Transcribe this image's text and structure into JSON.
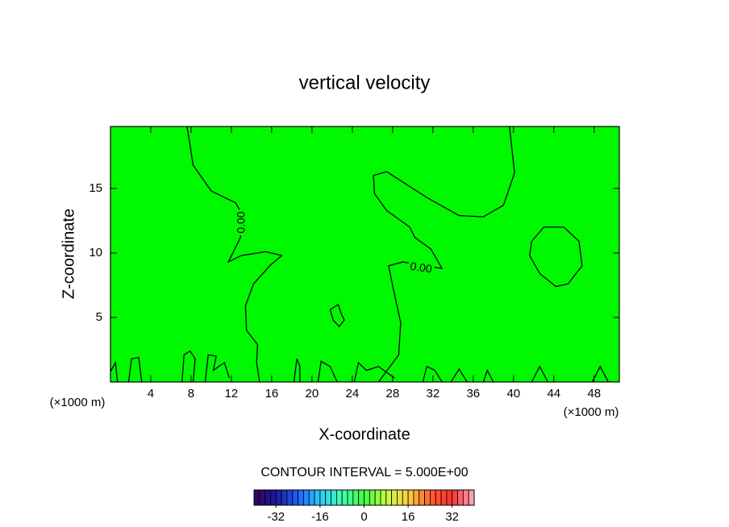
{
  "chart_data": {
    "type": "contour",
    "title": "vertical velocity",
    "xlabel": "X-coordinate",
    "ylabel": "Z-coordinate",
    "x_unit_left": "(×1000 m)",
    "x_unit_right": "(×1000 m)",
    "xlim": [
      0,
      50.5
    ],
    "ylim": [
      0,
      19.8
    ],
    "xticks": [
      4,
      8,
      12,
      16,
      20,
      24,
      28,
      32,
      36,
      40,
      44,
      48
    ],
    "yticks": [
      5,
      10,
      15
    ],
    "fill_color": "#00f800",
    "line_color": "#000000",
    "contours": [
      {
        "label": "0.00",
        "x": [
          7.6,
          8.2,
          10.0,
          12.4,
          13.0,
          12.9,
          11.7,
          13.0,
          15.4,
          17.0,
          15.8,
          14.2,
          13.4,
          13.5,
          14.6,
          14.5,
          14.8
        ],
        "y": [
          19.8,
          16.8,
          14.8,
          13.9,
          13.1,
          11.2,
          9.3,
          9.8,
          10.1,
          9.8,
          9.0,
          7.6,
          5.9,
          4.0,
          2.9,
          1.5,
          0
        ]
      },
      {
        "label": "0.00",
        "x": [
          26.6,
          28.6,
          28.8,
          28.1,
          27.6,
          29.0,
          32.9,
          31.8,
          30.2,
          29.7,
          27.4,
          26.2,
          26.1,
          27.4,
          31.4,
          34.6,
          37.0,
          39.0,
          40.1,
          39.6
        ],
        "y": [
          0,
          2.1,
          4.6,
          7.1,
          9.0,
          9.3,
          8.8,
          10.3,
          11.2,
          12.0,
          13.3,
          14.6,
          16.0,
          16.3,
          14.3,
          12.9,
          12.8,
          13.7,
          16.2,
          19.8
        ]
      },
      {
        "x": [
          41.8,
          43.0,
          45.0,
          46.5,
          46.8,
          45.4,
          44.2,
          42.6,
          41.6,
          41.8
        ],
        "y": [
          10.9,
          12.0,
          12.0,
          10.9,
          9.0,
          7.6,
          7.4,
          8.4,
          9.8,
          10.9
        ]
      },
      {
        "x": [
          21.8,
          22.6,
          22.9,
          23.2,
          22.7,
          22.1,
          21.8
        ],
        "y": [
          5.6,
          6.0,
          5.3,
          4.8,
          4.3,
          4.8,
          5.6
        ]
      },
      {
        "x": [
          0,
          0.5,
          0.7
        ],
        "y": [
          0.8,
          1.5,
          0
        ]
      },
      {
        "x": [
          1.8,
          2.1,
          2.8,
          3.1
        ],
        "y": [
          0,
          1.8,
          1.9,
          0
        ]
      },
      {
        "x": [
          7.1,
          7.3,
          7.9,
          8.4,
          8.2
        ],
        "y": [
          0,
          2.1,
          2.4,
          1.8,
          0
        ]
      },
      {
        "x": [
          9.4,
          9.7,
          10.5,
          10.2,
          11.3,
          11.8
        ],
        "y": [
          0,
          2.1,
          2.0,
          0.9,
          1.5,
          0.3
        ]
      },
      {
        "x": [
          18.2,
          18.5,
          18.8,
          18.8
        ],
        "y": [
          0,
          1.8,
          1.2,
          0
        ]
      },
      {
        "x": [
          20.6,
          20.9,
          21.8,
          22.5
        ],
        "y": [
          0,
          1.6,
          1.2,
          0
        ]
      },
      {
        "x": [
          24.2,
          24.6,
          25.4,
          26.6,
          28.2
        ],
        "y": [
          0,
          1.5,
          0.9,
          1.2,
          0.3
        ]
      },
      {
        "x": [
          31.0,
          31.4,
          32.2,
          32.9
        ],
        "y": [
          0,
          1.2,
          0.9,
          0
        ]
      },
      {
        "x": [
          33.8,
          34.6,
          35.4
        ],
        "y": [
          0,
          1.0,
          0
        ]
      },
      {
        "x": [
          37.0,
          37.4,
          38.0
        ],
        "y": [
          0,
          0.9,
          0
        ]
      },
      {
        "x": [
          41.8,
          42.6,
          43.4
        ],
        "y": [
          0,
          1.2,
          0
        ]
      },
      {
        "x": [
          47.8,
          48.6,
          49.4
        ],
        "y": [
          0,
          1.2,
          0
        ]
      }
    ],
    "contour_interval_text": "CONTOUR INTERVAL = 5.000E+00",
    "colorbar": {
      "lim": [
        -40,
        40
      ],
      "ticks": [
        -32,
        -16,
        0,
        16,
        32
      ],
      "colors": [
        "#3a005a",
        "#1a1a9a",
        "#2060ff",
        "#30c8ff",
        "#40ffb0",
        "#40ff40",
        "#c0ff40",
        "#ffd040",
        "#ff6030",
        "#ff3030",
        "#ffb0c0"
      ]
    }
  }
}
